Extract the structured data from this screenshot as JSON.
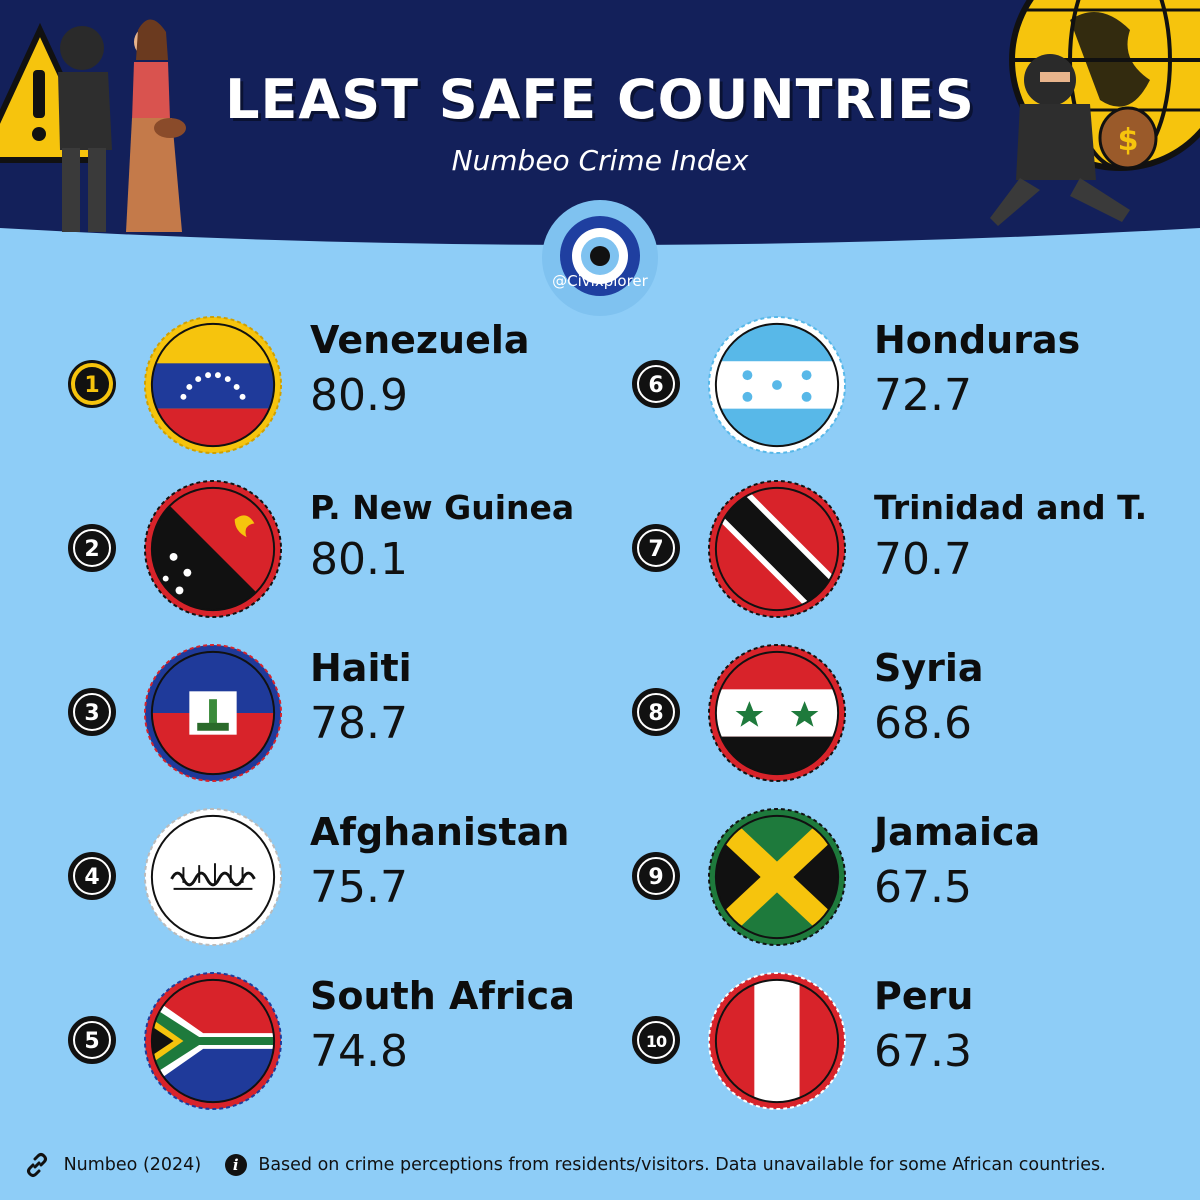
{
  "header": {
    "title": "LEAST SAFE COUNTRIES",
    "subtitle": "Numbeo Crime Index",
    "handle": "@Civixplorer"
  },
  "colors": {
    "background": "#8ecdf7",
    "header_band": "#13205a",
    "accent_gold": "#f6c40d"
  },
  "chart_data": {
    "type": "table",
    "columns": [
      "rank",
      "country",
      "value"
    ],
    "rows": [
      {
        "rank": "1",
        "country": "Venezuela",
        "value": "80.9"
      },
      {
        "rank": "2",
        "country": "P. New Guinea",
        "value": "80.1"
      },
      {
        "rank": "3",
        "country": "Haiti",
        "value": "78.7"
      },
      {
        "rank": "4",
        "country": "Afghanistan",
        "value": "75.7"
      },
      {
        "rank": "5",
        "country": "South Africa",
        "value": "74.8"
      },
      {
        "rank": "6",
        "country": "Honduras",
        "value": "72.7"
      },
      {
        "rank": "7",
        "country": "Trinidad and T.",
        "value": "70.7"
      },
      {
        "rank": "8",
        "country": "Syria",
        "value": "68.6"
      },
      {
        "rank": "9",
        "country": "Jamaica",
        "value": "67.5"
      },
      {
        "rank": "10",
        "country": "Peru",
        "value": "67.3"
      }
    ]
  },
  "flags": [
    "venezuela-flag-icon",
    "papua-new-guinea-flag-icon",
    "haiti-flag-icon",
    "afghanistan-flag-icon",
    "south-africa-flag-icon",
    "honduras-flag-icon",
    "trinidad-and-tobago-flag-icon",
    "syria-flag-icon",
    "jamaica-flag-icon",
    "peru-flag-icon"
  ],
  "footer": {
    "source": "Numbeo (2024)",
    "note": "Based on crime perceptions from residents/visitors. Data unavailable for some African countries."
  },
  "icons": {
    "source": "link-icon",
    "note": "info-icon",
    "logo": "evil-eye-logo-icon",
    "left_illustration": "pickpocket-warning-icon",
    "right_illustration": "thief-globe-icon"
  }
}
